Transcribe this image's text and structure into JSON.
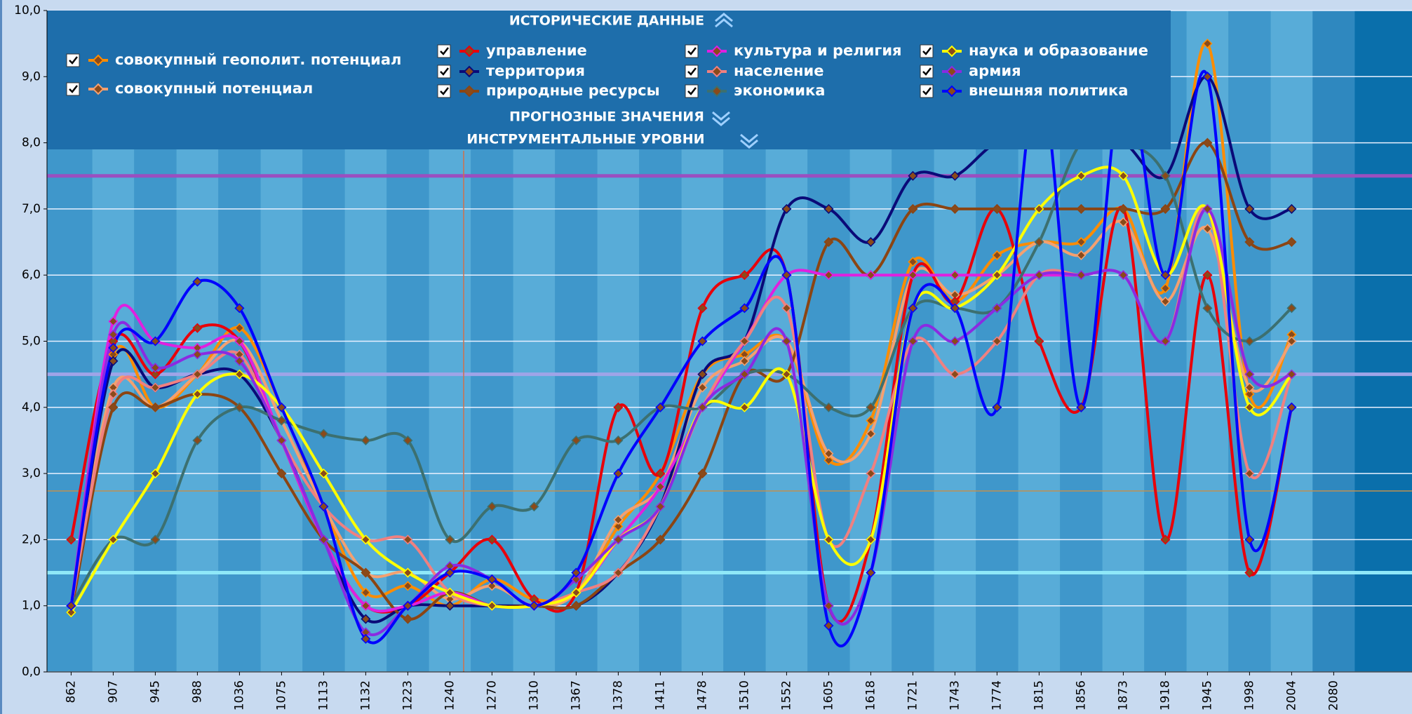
{
  "chart_data": {
    "type": "line",
    "title": "ИСТОРИЧЕСКИЕ ДАННЫЕ",
    "sections": [
      "ПРОГНОЗНЫЕ ЗНАЧЕНИЯ",
      "ИНСТРУМЕНТАЛЬНЫЕ УРОВНИ"
    ],
    "categories": [
      "862",
      "907",
      "945",
      "988",
      "1036",
      "1075",
      "1113",
      "1132",
      "1223",
      "1240",
      "1270",
      "1310",
      "1367",
      "1378",
      "1411",
      "1478",
      "1510",
      "1552",
      "1605",
      "1618",
      "1721",
      "1743",
      "1774",
      "1815",
      "1856",
      "1873",
      "1918",
      "1945",
      "1998",
      "2004",
      "2080"
    ],
    "ylim": [
      0,
      10
    ],
    "yticks": [
      {
        "value": 0,
        "label": "0,0"
      },
      {
        "value": 1,
        "label": "1,0"
      },
      {
        "value": 2,
        "label": "2,0"
      },
      {
        "value": 3,
        "label": "3,0"
      },
      {
        "value": 4,
        "label": "4,0"
      },
      {
        "value": 5,
        "label": "5,0"
      },
      {
        "value": 6,
        "label": "6,0"
      },
      {
        "value": 7,
        "label": "7,0"
      },
      {
        "value": 8,
        "label": "8,0"
      },
      {
        "value": 9,
        "label": "9,0"
      },
      {
        "value": 10,
        "label": "10,0"
      }
    ],
    "grid": true,
    "levels": [
      {
        "value": 7.5,
        "color": "#9a4fc0"
      },
      {
        "value": 4.5,
        "color": "#9fa4e8"
      },
      {
        "value": 1.5,
        "color": "#8fe8f8"
      }
    ],
    "series": [
      {
        "name": "совокупный геополит. потенциал",
        "color": "#ff8c00",
        "values": [
          0.9,
          4.8,
          4,
          4.5,
          5.2,
          4,
          2.5,
          1.2,
          1.3,
          1,
          1.4,
          1.1,
          1.2,
          2.2,
          3,
          4.5,
          4.8,
          5,
          3.2,
          3.8,
          6.2,
          5.6,
          6.3,
          6.5,
          6.5,
          7,
          5.8,
          9.5,
          4.2,
          5.1,
          null
        ]
      },
      {
        "name": "совокупный потенциал",
        "color": "#f4a070",
        "values": [
          1,
          4.3,
          4,
          4.5,
          5,
          3.8,
          2.5,
          1.5,
          1.5,
          1.1,
          1.3,
          1,
          1.2,
          2.3,
          2.8,
          4.3,
          4.7,
          5,
          3.3,
          3.6,
          6,
          5.7,
          6,
          6.5,
          6.3,
          6.8,
          5.6,
          6.7,
          4.3,
          5,
          null
        ]
      },
      {
        "name": "управление",
        "color": "#e8000a",
        "values": [
          2,
          5,
          4.5,
          5.2,
          5,
          3.5,
          2,
          1,
          1,
          1.5,
          2,
          1.1,
          1.2,
          4,
          3,
          5.5,
          6,
          6,
          1,
          2,
          6,
          5.6,
          7,
          5,
          4,
          7,
          2,
          6,
          1.5,
          4,
          null
        ]
      },
      {
        "name": "территория",
        "color": "#0a0a78",
        "values": [
          1,
          4.7,
          4.3,
          4.5,
          4.5,
          3.5,
          2,
          0.8,
          1,
          1,
          1,
          1,
          1,
          1.5,
          2.5,
          4.5,
          5,
          7,
          7,
          6.5,
          7.5,
          7.5,
          8,
          8,
          8,
          8,
          7.5,
          9,
          7,
          7,
          null
        ]
      },
      {
        "name": "природные ресурсы",
        "color": "#8b4513",
        "values": [
          0.9,
          4,
          4,
          4.2,
          4,
          3,
          2,
          1.5,
          0.8,
          1.2,
          1,
          1,
          1,
          1.5,
          2,
          3,
          4.5,
          4.5,
          6.5,
          6,
          7,
          7,
          7,
          7,
          7,
          7,
          7,
          8,
          6.5,
          6.5,
          null
        ]
      },
      {
        "name": "культура и религия",
        "color": "#e020e0",
        "values": [
          1,
          5.3,
          5,
          4.9,
          5,
          3.5,
          2,
          1,
          1,
          1.2,
          1,
          1,
          1.2,
          2,
          2.8,
          4,
          5,
          6,
          6,
          6,
          6,
          6,
          6,
          6,
          6,
          6,
          5,
          7,
          4.5,
          4.5,
          null
        ]
      },
      {
        "name": "население",
        "color": "#f08080",
        "values": [
          1,
          4.2,
          4.3,
          4.5,
          4.8,
          3.5,
          2.5,
          2,
          2,
          1.2,
          1,
          1,
          1.2,
          1.5,
          2.5,
          4,
          5,
          5.5,
          2,
          3,
          5,
          4.5,
          5,
          6,
          6,
          6,
          5,
          7,
          3,
          4.5,
          null
        ]
      },
      {
        "name": "экономика",
        "color": "#3c7070",
        "values": [
          1,
          2,
          2,
          3.5,
          4,
          3.8,
          3.6,
          3.5,
          3.5,
          2,
          2.5,
          2.5,
          3.5,
          3.5,
          4,
          4,
          4.5,
          4.5,
          4,
          4,
          5.5,
          5.5,
          5.5,
          6.5,
          8,
          8,
          7.5,
          5.5,
          5,
          5.5,
          null
        ]
      },
      {
        "name": "наука и образование",
        "color": "#ffff00",
        "values": [
          0.9,
          2,
          3,
          4.2,
          4.5,
          4,
          3,
          2,
          1.5,
          1.2,
          1,
          1,
          1.2,
          2,
          2.5,
          4,
          4,
          4.5,
          2,
          2,
          5.5,
          5.5,
          6,
          7,
          7.5,
          7.5,
          6,
          7,
          4,
          4.5,
          null
        ]
      },
      {
        "name": "армия",
        "color": "#8a2be2",
        "values": [
          1,
          5.1,
          4.6,
          4.8,
          4.7,
          3.5,
          2,
          0.6,
          1,
          1.6,
          1.4,
          1,
          1.4,
          2,
          2.5,
          4,
          4.5,
          5,
          1,
          1.5,
          5,
          5,
          5.5,
          6,
          6,
          6,
          5,
          7,
          4.5,
          4.5,
          null
        ]
      },
      {
        "name": "внешняя политика",
        "color": "#0000ff",
        "values": [
          1,
          4.9,
          5,
          5.9,
          5.5,
          4,
          2.5,
          0.5,
          1,
          1.5,
          1.4,
          1,
          1.5,
          3,
          4,
          5,
          5.5,
          6,
          0.7,
          1.5,
          5.5,
          5.5,
          4,
          9,
          4,
          9,
          6,
          9,
          2,
          4,
          null
        ]
      }
    ]
  }
}
